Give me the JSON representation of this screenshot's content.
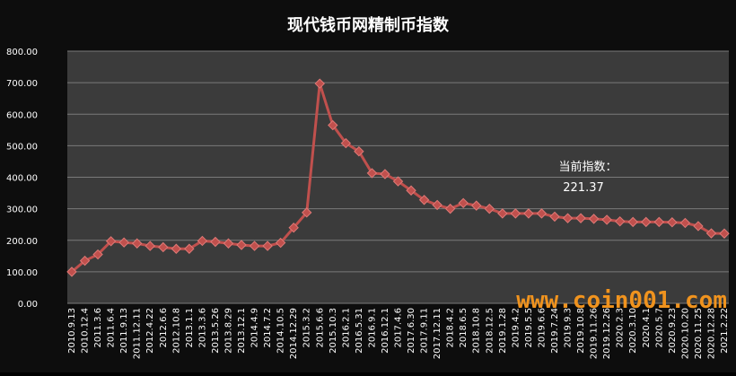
{
  "chart_data": {
    "type": "line",
    "title": "现代钱币网精制币指数",
    "categories": [
      "2010.9.13",
      "2010.12.4",
      "2011.3.6",
      "2011.6.4",
      "2011.9.13",
      "2011.12.11",
      "2012.4.22",
      "2012.6.6",
      "2012.10.8",
      "2013.1.1",
      "2013.3.6",
      "2013.5.26",
      "2013.8.29",
      "2013.12.1",
      "2014.4.9",
      "2014.7.2",
      "2014.10.5",
      "2014.12.29",
      "2015.3.2",
      "2015.6.6",
      "2015.10.3",
      "2016.2.1",
      "2016.5.31",
      "2016.9.1",
      "2016.12.1",
      "2017.4.6",
      "2017.6.30",
      "2017.9.11",
      "2017.12.11",
      "2018.4.2",
      "2018.6.5",
      "2018.10.8",
      "2018.12.5",
      "2019.1.28",
      "2019.4.2",
      "2019.5.5",
      "2019.6.6",
      "2019.7.24",
      "2019.9.3",
      "2019.10.8",
      "2019.11.26",
      "2019.12.26",
      "2020.2.3",
      "2020.3.10",
      "2020.4.1",
      "2020.5.7",
      "2020.9.23",
      "2020.10.20",
      "2020.11.25",
      "2020.12.28",
      "2021.2.22"
    ],
    "values": [
      100,
      135,
      155,
      197,
      193,
      190,
      182,
      178,
      173,
      173,
      198,
      195,
      190,
      185,
      182,
      182,
      192,
      240,
      288,
      697,
      565,
      508,
      482,
      413,
      410,
      387,
      358,
      328,
      312,
      300,
      318,
      310,
      300,
      285,
      285,
      285,
      285,
      275,
      270,
      270,
      268,
      265,
      260,
      258,
      258,
      258,
      257,
      255,
      245,
      222,
      221.37
    ],
    "color": "#c0504d",
    "ylim": [
      0,
      800
    ],
    "yticks": [
      {
        "value": 0,
        "label": "0.00"
      },
      {
        "value": 100,
        "label": "100.00"
      },
      {
        "value": 200,
        "label": "200.00"
      },
      {
        "value": 300,
        "label": "300.00"
      },
      {
        "value": 400,
        "label": "400.00"
      },
      {
        "value": 500,
        "label": "500.00"
      },
      {
        "value": 600,
        "label": "600.00"
      },
      {
        "value": 700,
        "label": "700.00"
      },
      {
        "value": 800,
        "label": "800.00"
      }
    ],
    "grid": true,
    "annotation": {
      "label": "当前指数：",
      "value": "221.37"
    },
    "watermark": "www.coin001.com"
  }
}
